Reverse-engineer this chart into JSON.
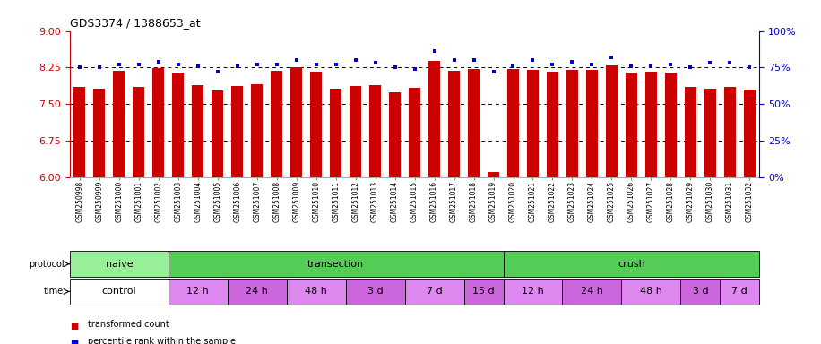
{
  "title": "GDS3374 / 1388653_at",
  "samples": [
    "GSM250998",
    "GSM250999",
    "GSM251000",
    "GSM251001",
    "GSM251002",
    "GSM251003",
    "GSM251004",
    "GSM251005",
    "GSM251006",
    "GSM251007",
    "GSM251008",
    "GSM251009",
    "GSM251010",
    "GSM251011",
    "GSM251012",
    "GSM251013",
    "GSM251014",
    "GSM251015",
    "GSM251016",
    "GSM251017",
    "GSM251018",
    "GSM251019",
    "GSM251020",
    "GSM251021",
    "GSM251022",
    "GSM251023",
    "GSM251024",
    "GSM251025",
    "GSM251026",
    "GSM251027",
    "GSM251028",
    "GSM251029",
    "GSM251030",
    "GSM251031",
    "GSM251032"
  ],
  "bar_values": [
    7.85,
    7.82,
    8.18,
    7.85,
    8.23,
    8.14,
    7.88,
    7.78,
    7.87,
    7.9,
    8.18,
    8.25,
    8.17,
    7.82,
    7.87,
    7.88,
    7.75,
    7.83,
    8.38,
    8.18,
    8.22,
    6.1,
    8.22,
    8.2,
    8.17,
    8.2,
    8.2,
    8.3,
    8.15,
    8.17,
    8.15,
    7.85,
    7.82,
    7.85,
    7.8
  ],
  "percentile_values": [
    75,
    75,
    77,
    77,
    79,
    77,
    76,
    72,
    76,
    77,
    77,
    80,
    77,
    77,
    80,
    78,
    75,
    74,
    86,
    80,
    80,
    72,
    76,
    80,
    77,
    79,
    77,
    82,
    76,
    76,
    77,
    75,
    78,
    78,
    75
  ],
  "bar_color": "#cc0000",
  "dot_color": "#0000cc",
  "ylim_left": [
    6,
    9
  ],
  "ylim_right": [
    0,
    100
  ],
  "yticks_left": [
    6,
    6.75,
    7.5,
    8.25,
    9
  ],
  "yticks_right": [
    0,
    25,
    50,
    75,
    100
  ],
  "grid_lines": [
    6.75,
    7.5,
    8.25
  ],
  "protocol_groups": [
    {
      "label": "naive",
      "start": 0,
      "end": 5,
      "color": "#99ee99"
    },
    {
      "label": "transection",
      "start": 5,
      "end": 22,
      "color": "#55cc55"
    },
    {
      "label": "crush",
      "start": 22,
      "end": 35,
      "color": "#55cc55"
    }
  ],
  "time_groups": [
    {
      "label": "control",
      "start": 0,
      "end": 5,
      "color": "#ffffff"
    },
    {
      "label": "12 h",
      "start": 5,
      "end": 8,
      "color": "#dd88ee"
    },
    {
      "label": "24 h",
      "start": 8,
      "end": 11,
      "color": "#cc66dd"
    },
    {
      "label": "48 h",
      "start": 11,
      "end": 14,
      "color": "#dd88ee"
    },
    {
      "label": "3 d",
      "start": 14,
      "end": 17,
      "color": "#cc66dd"
    },
    {
      "label": "7 d",
      "start": 17,
      "end": 20,
      "color": "#dd88ee"
    },
    {
      "label": "15 d",
      "start": 20,
      "end": 22,
      "color": "#cc66dd"
    },
    {
      "label": "12 h",
      "start": 22,
      "end": 25,
      "color": "#dd88ee"
    },
    {
      "label": "24 h",
      "start": 25,
      "end": 28,
      "color": "#cc66dd"
    },
    {
      "label": "48 h",
      "start": 28,
      "end": 31,
      "color": "#dd88ee"
    },
    {
      "label": "3 d",
      "start": 31,
      "end": 33,
      "color": "#cc66dd"
    },
    {
      "label": "7 d",
      "start": 33,
      "end": 35,
      "color": "#dd88ee"
    }
  ],
  "legend_bar_label": "transformed count",
  "legend_dot_label": "percentile rank within the sample",
  "fig_width": 9.16,
  "fig_height": 3.84,
  "dpi": 100
}
